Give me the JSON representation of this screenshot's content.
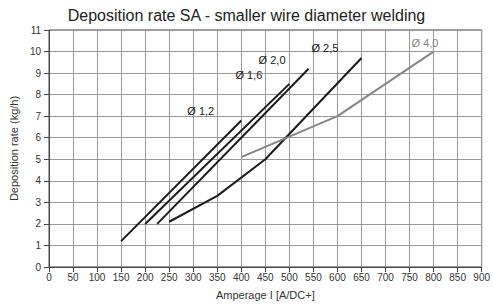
{
  "chart_data": {
    "type": "line",
    "title": "Deposition rate SA - smaller wire diameter welding",
    "x_label": "Amperage I [A/DC+]",
    "y_label": "Deposition rate (kg/h)",
    "series": [
      {
        "name": "Ø 1,2",
        "color": "#1a1a1a",
        "x": [
          150,
          400
        ],
        "values": [
          1.2,
          6.8
        ]
      },
      {
        "name": "Ø 1,6",
        "color": "#1a1a1a",
        "x": [
          200,
          500
        ],
        "values": [
          2.0,
          8.5
        ]
      },
      {
        "name": "Ø 2,0",
        "color": "#1a1a1a",
        "x": [
          225,
          540
        ],
        "values": [
          2.0,
          9.2
        ]
      },
      {
        "name": "Ø 2,5",
        "color": "#1a1a1a",
        "x": [
          250,
          350,
          450,
          650
        ],
        "values": [
          2.1,
          3.3,
          5.0,
          9.7
        ]
      },
      {
        "name": "Ø 4,0",
        "color": "#858585",
        "x": [
          400,
          600,
          800
        ],
        "values": [
          5.1,
          7.0,
          10.0
        ]
      }
    ],
    "xlim": [
      0,
      900
    ],
    "xticks": [
      0,
      50,
      100,
      150,
      200,
      250,
      300,
      350,
      400,
      450,
      500,
      550,
      600,
      650,
      700,
      750,
      800,
      850,
      900
    ],
    "ylim": [
      0,
      11
    ],
    "yticks": [
      0,
      1,
      2,
      3,
      4,
      5,
      6,
      7,
      8,
      9,
      10,
      11
    ],
    "grid": true
  }
}
